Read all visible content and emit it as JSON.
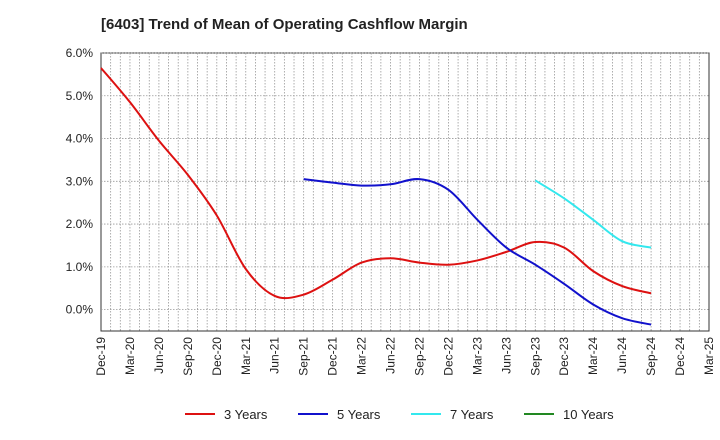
{
  "title": "[6403]  Trend of Mean of Operating Cashflow Margin",
  "chart_data": {
    "type": "line",
    "title": "[6403]  Trend of Mean of Operating Cashflow Margin",
    "xlabel": "",
    "ylabel": "",
    "ylim": [
      -0.5,
      6.0
    ],
    "yticks": [
      "6.0%",
      "5.0%",
      "4.0%",
      "3.0%",
      "2.0%",
      "1.0%",
      "0.0%"
    ],
    "ytick_values": [
      6,
      5,
      4,
      3,
      2,
      1,
      0
    ],
    "x": [
      "Dec-19",
      "Mar-20",
      "Jun-20",
      "Sep-20",
      "Dec-20",
      "Mar-21",
      "Jun-21",
      "Sep-21",
      "Dec-21",
      "Mar-22",
      "Jun-22",
      "Sep-22",
      "Dec-22",
      "Mar-23",
      "Jun-23",
      "Sep-23",
      "Dec-23",
      "Mar-24",
      "Jun-24",
      "Sep-24",
      "Dec-24",
      "Mar-25"
    ],
    "grid": true,
    "legend_position": "bottom",
    "series": [
      {
        "name": "3 Years",
        "color": "#dd1111",
        "values": [
          5.65,
          4.85,
          3.95,
          3.15,
          2.2,
          0.95,
          0.32,
          0.35,
          0.7,
          1.1,
          1.2,
          1.1,
          1.05,
          1.15,
          1.35,
          1.58,
          1.45,
          0.9,
          0.55,
          0.38,
          null,
          null
        ]
      },
      {
        "name": "5 Years",
        "color": "#1111cc",
        "values": [
          null,
          null,
          null,
          null,
          null,
          null,
          null,
          3.05,
          2.97,
          2.9,
          2.93,
          3.05,
          2.8,
          2.1,
          1.45,
          1.05,
          0.6,
          0.12,
          -0.2,
          -0.35,
          null,
          null
        ]
      },
      {
        "name": "7 Years",
        "color": "#33e8ee",
        "values": [
          null,
          null,
          null,
          null,
          null,
          null,
          null,
          null,
          null,
          null,
          null,
          null,
          null,
          null,
          null,
          3.02,
          2.6,
          2.1,
          1.6,
          1.45,
          null,
          null
        ]
      },
      {
        "name": "10 Years",
        "color": "#228822",
        "values": [
          null,
          null,
          null,
          null,
          null,
          null,
          null,
          null,
          null,
          null,
          null,
          null,
          null,
          null,
          null,
          null,
          null,
          null,
          null,
          null,
          null,
          null
        ]
      }
    ]
  }
}
